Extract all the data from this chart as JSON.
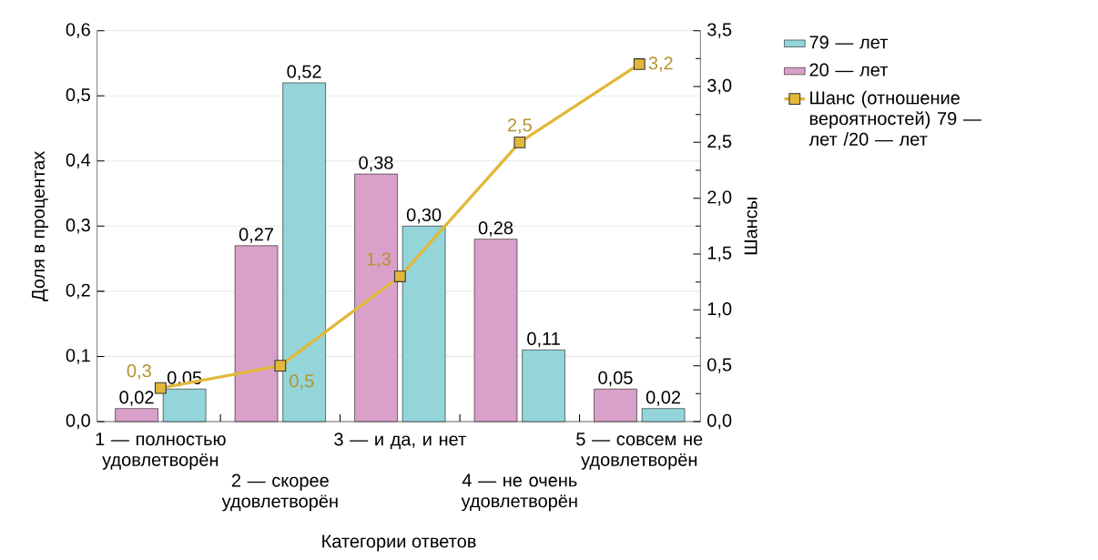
{
  "chart_data": {
    "type": "bar",
    "categories": [
      "1 — полностью удовлетворён",
      "2 — скорее удовлетворён",
      "3 — и да, и нет",
      "4 — не очень удовлетворён",
      "5 — совсем не удовлетворён"
    ],
    "series": [
      {
        "name": "79 — лет",
        "color": "#93d5d9",
        "values": [
          0.05,
          0.52,
          0.3,
          0.11,
          0.02
        ],
        "value_labels": [
          "0,05",
          "0,52",
          "0,30",
          "0,11",
          "0,02"
        ]
      },
      {
        "name": "20 — лет",
        "color": "#d9a0c9",
        "values": [
          0.02,
          0.27,
          0.38,
          0.28,
          0.05
        ],
        "value_labels": [
          "0,02",
          "0,27",
          "0,38",
          "0,28",
          "0,05"
        ]
      },
      {
        "name": "Шанс (отношение вероятностей) 79 — лет /20 — лет",
        "type": "line",
        "axis": "y2",
        "color": "#e2b83a",
        "marker": "square",
        "values": [
          0.3,
          0.5,
          1.3,
          2.5,
          3.2
        ],
        "value_labels": [
          "0,3",
          "0,5",
          "1,3",
          "2,5",
          "3,2"
        ]
      }
    ],
    "xlabel": "Категории ответов",
    "ylabel": "Доля в процентах",
    "y2label": "Шансы",
    "ylim": [
      0,
      0.6
    ],
    "yticks": [
      {
        "value": 0,
        "label": "0,0"
      },
      {
        "value": 0.1,
        "label": "0,1"
      },
      {
        "value": 0.2,
        "label": "0,2"
      },
      {
        "value": 0.3,
        "label": "0,3"
      },
      {
        "value": 0.4,
        "label": "0,4"
      },
      {
        "value": 0.5,
        "label": "0,5"
      },
      {
        "value": 0.6,
        "label": "0,6"
      }
    ],
    "y2lim": [
      0,
      3.5
    ],
    "y2ticks": [
      {
        "value": 0,
        "label": "0,0"
      },
      {
        "value": 0.5,
        "label": "0,5"
      },
      {
        "value": 1,
        "label": "1,0"
      },
      {
        "value": 1.5,
        "label": "1,5"
      },
      {
        "value": 2,
        "label": "2,0"
      },
      {
        "value": 2.5,
        "label": "2,5"
      },
      {
        "value": 3,
        "label": "3,0"
      },
      {
        "value": 3.5,
        "label": "3,5"
      }
    ],
    "grid": "y",
    "legend": "right"
  }
}
